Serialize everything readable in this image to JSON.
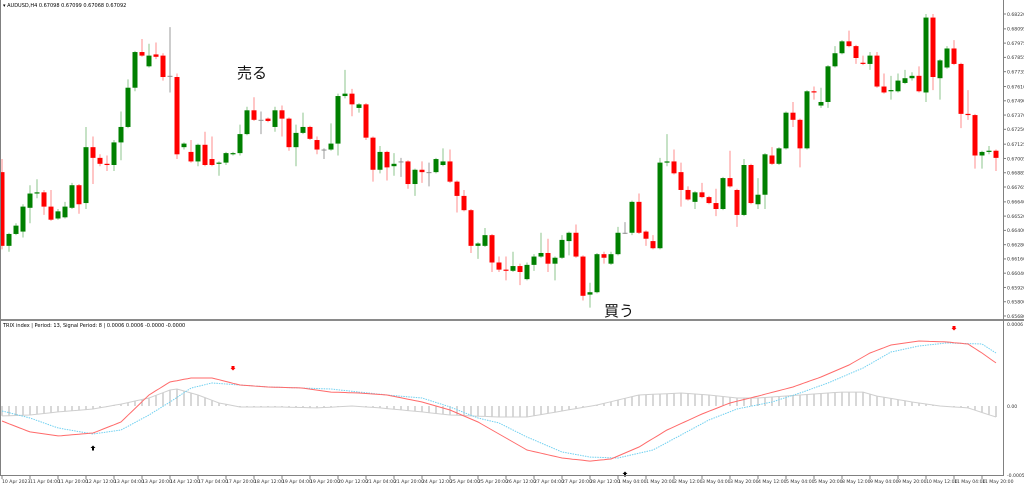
{
  "main_chart": {
    "symbol_header": "AUDUSD,H4",
    "ohlc_header": "0.67098 0.67099 0.67068 0.67092",
    "price_axis_labels": [
      "0.68220",
      "0.68095",
      "0.67975",
      "0.67855",
      "0.67735",
      "0.67610",
      "0.67490",
      "0.67370",
      "0.67250",
      "0.67125",
      "0.67005",
      "0.66885",
      "0.66765",
      "0.66640",
      "0.66520",
      "0.66400",
      "0.66280",
      "0.66160",
      "0.66040",
      "0.65920",
      "0.65800",
      "0.65680"
    ],
    "annotation_sell": "売る",
    "annotation_buy": "買う"
  },
  "indicator": {
    "header": "TRIX index | Period: 13, Signal Period: 8 |  0.0006 0.0006 -0.0000 -0.0000",
    "axis_labels": [
      {
        "text": "0.0006",
        "value": 0.0006
      },
      {
        "text": "0.00",
        "value": 0
      },
      {
        "text": "-0.0005",
        "value": -0.0005
      }
    ]
  },
  "time_axis_labels": [
    "10 Apr 2023",
    "11 Apr 04:00",
    "11 Apr 20:00",
    "12 Apr 12:00",
    "13 Apr 04:00",
    "13 Apr 20:00",
    "14 Apr 12:00",
    "17 Apr 04:00",
    "17 Apr 20:00",
    "18 Apr 12:00",
    "19 Apr 04:00",
    "19 Apr 20:00",
    "20 Apr 12:00",
    "21 Apr 04:00",
    "21 Apr 20:00",
    "24 Apr 12:00",
    "25 Apr 04:00",
    "25 Apr 20:00",
    "26 Apr 12:00",
    "27 Apr 04:00",
    "27 Apr 20:00",
    "28 Apr 12:00",
    "1 May 04:00",
    "1 May 20:00",
    "2 May 12:00",
    "3 May 04:00",
    "3 May 20:00",
    "4 May 12:00",
    "5 May 04:00",
    "5 May 20:00",
    "8 May 12:00",
    "9 May 04:00",
    "9 May 20:00",
    "10 May 12:00",
    "11 May 04:00",
    "11 May 20:00"
  ],
  "colors": {
    "bull": "#008000",
    "bear": "#ff0000",
    "doji": "#909090",
    "trix": "#ff6a6a",
    "signal": "#6fd0f0",
    "histogram": "#b0b0b0",
    "sell_arrow": "#ff0000",
    "buy_arrow": "#000000",
    "axis": "#808080"
  },
  "chart_data": {
    "type": "candlestick",
    "timeframe": "H4",
    "ylim": [
      0.6568,
      0.6822
    ],
    "candles_ohlc": [
      [
        0.6689,
        0.67,
        0.6624,
        0.6627
      ],
      [
        0.6627,
        0.6638,
        0.6622,
        0.6637
      ],
      [
        0.6637,
        0.6646,
        0.6636,
        0.6644
      ],
      [
        0.6639,
        0.6662,
        0.6634,
        0.666
      ],
      [
        0.6659,
        0.6678,
        0.6646,
        0.6671
      ],
      [
        0.6671,
        0.6683,
        0.6667,
        0.6672
      ],
      [
        0.6672,
        0.6674,
        0.6653,
        0.666
      ],
      [
        0.666,
        0.6674,
        0.6648,
        0.6649
      ],
      [
        0.665,
        0.6658,
        0.6649,
        0.6656
      ],
      [
        0.6651,
        0.6664,
        0.665,
        0.666
      ],
      [
        0.6659,
        0.668,
        0.6658,
        0.6678
      ],
      [
        0.6678,
        0.6679,
        0.6654,
        0.6662
      ],
      [
        0.6663,
        0.6727,
        0.6658,
        0.671
      ],
      [
        0.671,
        0.6719,
        0.6679,
        0.6701
      ],
      [
        0.6701,
        0.6704,
        0.6694,
        0.6696
      ],
      [
        0.6696,
        0.6703,
        0.669,
        0.6695
      ],
      [
        0.6695,
        0.6716,
        0.669,
        0.6714
      ],
      [
        0.6714,
        0.674,
        0.6699,
        0.6727
      ],
      [
        0.6727,
        0.6767,
        0.6726,
        0.676
      ],
      [
        0.676,
        0.6791,
        0.6757,
        0.679
      ],
      [
        0.679,
        0.6801,
        0.6786,
        0.6787
      ],
      [
        0.6778,
        0.6797,
        0.6777,
        0.6787
      ],
      [
        0.6788,
        0.6798,
        0.6784,
        0.6786
      ],
      [
        0.6787,
        0.6789,
        0.6766,
        0.6769
      ],
      [
        0.677,
        0.6811,
        0.6756,
        0.677
      ],
      [
        0.6769,
        0.6772,
        0.67,
        0.6704
      ],
      [
        0.671,
        0.6714,
        0.6708,
        0.6713
      ],
      [
        0.6706,
        0.6716,
        0.6697,
        0.6698
      ],
      [
        0.6698,
        0.6713,
        0.6694,
        0.6712
      ],
      [
        0.6712,
        0.6723,
        0.6694,
        0.6695
      ],
      [
        0.67,
        0.6719,
        0.6694,
        0.6695
      ],
      [
        0.6696,
        0.6698,
        0.6686,
        0.6697
      ],
      [
        0.6697,
        0.6706,
        0.6695,
        0.6705
      ],
      [
        0.6704,
        0.6706,
        0.6703,
        0.6705
      ],
      [
        0.6705,
        0.6729,
        0.6703,
        0.6721
      ],
      [
        0.6721,
        0.6744,
        0.672,
        0.6741
      ],
      [
        0.6741,
        0.6752,
        0.6732,
        0.6733
      ],
      [
        0.6733,
        0.674,
        0.6721,
        0.6733
      ],
      [
        0.6734,
        0.6735,
        0.6731,
        0.6732
      ],
      [
        0.6727,
        0.6744,
        0.6723,
        0.6741
      ],
      [
        0.6741,
        0.6745,
        0.6719,
        0.6734
      ],
      [
        0.6734,
        0.6735,
        0.6707,
        0.671
      ],
      [
        0.671,
        0.6729,
        0.6694,
        0.6722
      ],
      [
        0.6722,
        0.6739,
        0.6721,
        0.6727
      ],
      [
        0.6727,
        0.6728,
        0.6716,
        0.6717
      ],
      [
        0.6716,
        0.6719,
        0.6704,
        0.6708
      ],
      [
        0.6708,
        0.6709,
        0.67,
        0.6708
      ],
      [
        0.6708,
        0.673,
        0.6707,
        0.6713
      ],
      [
        0.6713,
        0.6755,
        0.6703,
        0.6753
      ],
      [
        0.6753,
        0.6775,
        0.6751,
        0.6755
      ],
      [
        0.6755,
        0.6759,
        0.6736,
        0.6746
      ],
      [
        0.6743,
        0.6747,
        0.6739,
        0.6746
      ],
      [
        0.6746,
        0.6747,
        0.6716,
        0.6718
      ],
      [
        0.6718,
        0.6719,
        0.6681,
        0.6691
      ],
      [
        0.6691,
        0.6711,
        0.6688,
        0.6706
      ],
      [
        0.6706,
        0.6707,
        0.6682,
        0.6693
      ],
      [
        0.6694,
        0.6705,
        0.6686,
        0.6696
      ],
      [
        0.6698,
        0.6701,
        0.6685,
        0.6698
      ],
      [
        0.6698,
        0.6699,
        0.6675,
        0.6679
      ],
      [
        0.6679,
        0.6692,
        0.6669,
        0.6691
      ],
      [
        0.6691,
        0.6698,
        0.668,
        0.6689
      ],
      [
        0.6689,
        0.6697,
        0.6677,
        0.6689
      ],
      [
        0.6689,
        0.6701,
        0.6688,
        0.67
      ],
      [
        0.6695,
        0.6709,
        0.6694,
        0.6698
      ],
      [
        0.6698,
        0.6708,
        0.668,
        0.6681
      ],
      [
        0.6681,
        0.6682,
        0.6655,
        0.6669
      ],
      [
        0.6669,
        0.6674,
        0.6656,
        0.6657
      ],
      [
        0.6657,
        0.6658,
        0.6621,
        0.6627
      ],
      [
        0.6627,
        0.663,
        0.6616,
        0.6629
      ],
      [
        0.6627,
        0.6642,
        0.6626,
        0.6636
      ],
      [
        0.6636,
        0.6637,
        0.6605,
        0.6613
      ],
      [
        0.6613,
        0.6618,
        0.6605,
        0.6607
      ],
      [
        0.6607,
        0.6618,
        0.6598,
        0.6606
      ],
      [
        0.6606,
        0.6622,
        0.6605,
        0.661
      ],
      [
        0.661,
        0.6612,
        0.6594,
        0.6605
      ],
      [
        0.6599,
        0.6613,
        0.6598,
        0.6611
      ],
      [
        0.6611,
        0.662,
        0.6606,
        0.6618
      ],
      [
        0.6618,
        0.6638,
        0.6617,
        0.6621
      ],
      [
        0.6621,
        0.6633,
        0.6605,
        0.6612
      ],
      [
        0.6612,
        0.6618,
        0.6598,
        0.6617
      ],
      [
        0.6617,
        0.6636,
        0.6616,
        0.6632
      ],
      [
        0.6631,
        0.6639,
        0.6619,
        0.6638
      ],
      [
        0.6638,
        0.6645,
        0.6617,
        0.6618
      ],
      [
        0.6618,
        0.6619,
        0.6581,
        0.6585
      ],
      [
        0.6586,
        0.6596,
        0.6575,
        0.6588
      ],
      [
        0.6588,
        0.6621,
        0.6587,
        0.662
      ],
      [
        0.662,
        0.6622,
        0.6612,
        0.6617
      ],
      [
        0.6612,
        0.6622,
        0.6611,
        0.662
      ],
      [
        0.662,
        0.6643,
        0.6619,
        0.6638
      ],
      [
        0.6638,
        0.6647,
        0.6637,
        0.6638
      ],
      [
        0.6638,
        0.6665,
        0.6636,
        0.6664
      ],
      [
        0.6664,
        0.6671,
        0.6637,
        0.6638
      ],
      [
        0.6639,
        0.664,
        0.6627,
        0.6633
      ],
      [
        0.6631,
        0.6636,
        0.6624,
        0.6625
      ],
      [
        0.6625,
        0.6701,
        0.6624,
        0.6697
      ],
      [
        0.6697,
        0.6721,
        0.6694,
        0.6698
      ],
      [
        0.6698,
        0.6708,
        0.6687,
        0.6688
      ],
      [
        0.6689,
        0.6697,
        0.666,
        0.6674
      ],
      [
        0.6674,
        0.6677,
        0.6665,
        0.6666
      ],
      [
        0.6664,
        0.6673,
        0.6658,
        0.6672
      ],
      [
        0.6672,
        0.668,
        0.6667,
        0.6668
      ],
      [
        0.6668,
        0.6669,
        0.6662,
        0.6663
      ],
      [
        0.6663,
        0.6675,
        0.6652,
        0.6658
      ],
      [
        0.6658,
        0.6685,
        0.6657,
        0.6684
      ],
      [
        0.6684,
        0.6707,
        0.6676,
        0.6677
      ],
      [
        0.6674,
        0.6675,
        0.6643,
        0.6653
      ],
      [
        0.6653,
        0.67,
        0.6652,
        0.6695
      ],
      [
        0.6695,
        0.6696,
        0.6662,
        0.6663
      ],
      [
        0.6662,
        0.6684,
        0.6658,
        0.667
      ],
      [
        0.667,
        0.6705,
        0.6658,
        0.6704
      ],
      [
        0.6703,
        0.671,
        0.6695,
        0.6696
      ],
      [
        0.6696,
        0.671,
        0.6695,
        0.6709
      ],
      [
        0.6709,
        0.674,
        0.6708,
        0.6739
      ],
      [
        0.6739,
        0.6748,
        0.6727,
        0.6733
      ],
      [
        0.6733,
        0.6734,
        0.6693,
        0.6709
      ],
      [
        0.6709,
        0.6758,
        0.6708,
        0.6757
      ],
      [
        0.6757,
        0.6761,
        0.675,
        0.6756
      ],
      [
        0.6745,
        0.676,
        0.6743,
        0.6748
      ],
      [
        0.6748,
        0.6779,
        0.6743,
        0.6778
      ],
      [
        0.6778,
        0.6795,
        0.6777,
        0.6789
      ],
      [
        0.6789,
        0.68,
        0.6788,
        0.6799
      ],
      [
        0.6799,
        0.6808,
        0.6794,
        0.6795
      ],
      [
        0.6795,
        0.6796,
        0.678,
        0.6785
      ],
      [
        0.6781,
        0.6787,
        0.6779,
        0.678
      ],
      [
        0.678,
        0.679,
        0.6775,
        0.6787
      ],
      [
        0.6787,
        0.679,
        0.676,
        0.6761
      ],
      [
        0.6761,
        0.6772,
        0.6755,
        0.6756
      ],
      [
        0.6757,
        0.677,
        0.675,
        0.6758
      ],
      [
        0.6757,
        0.6772,
        0.6756,
        0.6766
      ],
      [
        0.6764,
        0.6775,
        0.6763,
        0.6768
      ],
      [
        0.6768,
        0.6773,
        0.6766,
        0.677
      ],
      [
        0.677,
        0.6778,
        0.6756,
        0.6757
      ],
      [
        0.6756,
        0.6822,
        0.6748,
        0.6819
      ],
      [
        0.6819,
        0.6822,
        0.6758,
        0.6769
      ],
      [
        0.6768,
        0.6784,
        0.675,
        0.6783
      ],
      [
        0.6777,
        0.6795,
        0.6776,
        0.6793
      ],
      [
        0.6793,
        0.68,
        0.6779,
        0.678
      ],
      [
        0.678,
        0.6781,
        0.6726,
        0.6738
      ],
      [
        0.6738,
        0.6758,
        0.6733,
        0.6737
      ],
      [
        0.6737,
        0.6738,
        0.6692,
        0.6703
      ],
      [
        0.6703,
        0.6707,
        0.6692,
        0.6706
      ],
      [
        0.6706,
        0.6711,
        0.6704,
        0.6707
      ],
      [
        0.6707,
        0.6708,
        0.669,
        0.6701
      ]
    ],
    "indicator": {
      "name": "TRIX index",
      "ylim": [
        -0.0005,
        0.0006
      ],
      "trix_points_candle_value": [
        [
          0,
          -0.000109
        ],
        [
          4,
          -0.000188
        ],
        [
          8,
          -0.000217
        ],
        [
          13,
          -0.000196
        ],
        [
          17,
          -0.000116
        ],
        [
          21,
          8e-05
        ],
        [
          24,
          0.000174
        ],
        [
          27,
          0.000203
        ],
        [
          30,
          0.000203
        ],
        [
          34,
          0.000152
        ],
        [
          38,
          0.000138
        ],
        [
          43,
          0.00013
        ],
        [
          47,
          0.000101
        ],
        [
          51,
          9.4e-05
        ],
        [
          55,
          8e-05
        ],
        [
          60,
          2.9e-05
        ],
        [
          64,
          -2.9e-05
        ],
        [
          68,
          -0.000116
        ],
        [
          71,
          -0.000203
        ],
        [
          75,
          -0.000319
        ],
        [
          80,
          -0.000377
        ],
        [
          84,
          -0.000399
        ],
        [
          87,
          -0.000384
        ],
        [
          91,
          -0.000297
        ],
        [
          95,
          -0.000174
        ],
        [
          100,
          -5.8e-05
        ],
        [
          104,
          2.2e-05
        ],
        [
          108,
          7.2e-05
        ],
        [
          113,
          0.000138
        ],
        [
          117,
          0.00021
        ],
        [
          121,
          0.000297
        ],
        [
          124,
          0.000384
        ],
        [
          127,
          0.000442
        ],
        [
          131,
          0.000471
        ],
        [
          135,
          0.000464
        ],
        [
          138,
          0.000449
        ],
        [
          140,
          0.000384
        ],
        [
          142,
          0.000312
        ]
      ],
      "signal_points_candle_value": [
        [
          0,
          -3.6e-05
        ],
        [
          4,
          -8.7e-05
        ],
        [
          8,
          -0.000159
        ],
        [
          13,
          -0.000203
        ],
        [
          17,
          -0.000174
        ],
        [
          21,
          -6.5e-05
        ],
        [
          24,
          2.9e-05
        ],
        [
          27,
          0.00013
        ],
        [
          30,
          0.000167
        ],
        [
          34,
          0.000152
        ],
        [
          38,
          0.000138
        ],
        [
          43,
          0.00013
        ],
        [
          47,
          0.000123
        ],
        [
          51,
          0.000101
        ],
        [
          55,
          8e-05
        ],
        [
          60,
          5.8e-05
        ],
        [
          64,
          -7e-06
        ],
        [
          68,
          -8.7e-05
        ],
        [
          71,
          -0.000123
        ],
        [
          75,
          -0.000225
        ],
        [
          80,
          -0.000333
        ],
        [
          84,
          -0.00037
        ],
        [
          88,
          -0.000377
        ],
        [
          93,
          -0.000319
        ],
        [
          97,
          -0.00021
        ],
        [
          101,
          -0.000101
        ],
        [
          105,
          -2.2e-05
        ],
        [
          110,
          2.9e-05
        ],
        [
          114,
          9.4e-05
        ],
        [
          118,
          0.000167
        ],
        [
          123,
          0.000275
        ],
        [
          127,
          0.000391
        ],
        [
          131,
          0.000435
        ],
        [
          135,
          0.000457
        ],
        [
          140,
          0.000449
        ],
        [
          142,
          0.000384
        ]
      ],
      "histogram_points_candle_value": [
        [
          0,
          -7.2e-05
        ],
        [
          4,
          -6.5e-05
        ],
        [
          8,
          -4.3e-05
        ],
        [
          13,
          -2.2e-05
        ],
        [
          17,
          1.4e-05
        ],
        [
          21,
          5.8e-05
        ],
        [
          24,
          0.000116
        ],
        [
          25,
          0.000123
        ],
        [
          28,
          8e-05
        ],
        [
          31,
          2.2e-05
        ],
        [
          34,
          -7e-06
        ],
        [
          40,
          -7e-06
        ],
        [
          45,
          -1.4e-05
        ],
        [
          50,
          0
        ],
        [
          54,
          -1.4e-05
        ],
        [
          60,
          -4.3e-05
        ],
        [
          64,
          -6.5e-05
        ],
        [
          71,
          -8e-05
        ],
        [
          75,
          -8e-05
        ],
        [
          80,
          -3.6e-05
        ],
        [
          85,
          7e-06
        ],
        [
          91,
          8e-05
        ],
        [
          97,
          9.4e-05
        ],
        [
          101,
          8e-05
        ],
        [
          105,
          5.8e-05
        ],
        [
          108,
          5.8e-05
        ],
        [
          114,
          8e-05
        ],
        [
          120,
          0.000101
        ],
        [
          123,
          0.000101
        ],
        [
          125,
          7.2e-05
        ],
        [
          130,
          2.9e-05
        ],
        [
          134,
          0
        ],
        [
          138,
          -1.4e-05
        ],
        [
          142,
          -8e-05
        ]
      ],
      "signals": [
        {
          "type": "sell",
          "candle": 33,
          "value": 0.000275
        },
        {
          "type": "sell",
          "candle": 136,
          "value": 0.000565
        },
        {
          "type": "buy",
          "candle": 13,
          "value": -0.000304
        },
        {
          "type": "buy",
          "candle": 89,
          "value": -0.000493
        }
      ]
    }
  }
}
